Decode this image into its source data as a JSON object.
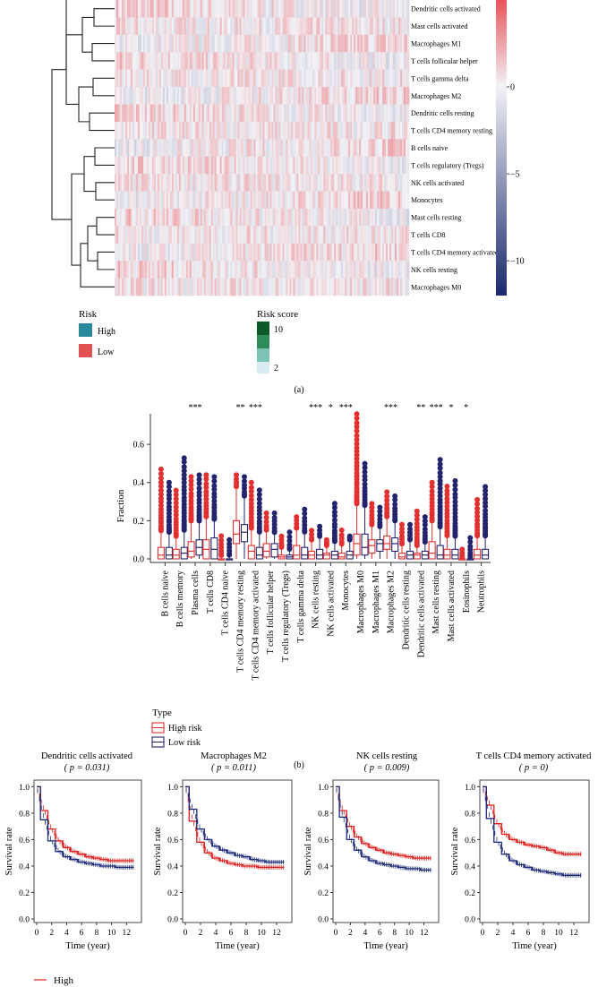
{
  "chart_data": [
    {
      "type": "heatmap",
      "panel_label": "(a)",
      "rows": [
        "Dendritic cells activated",
        "Mast cells activated",
        "Macrophages M1",
        "T cells follicular helper",
        "T cells gamma delta",
        "Macrophages M2",
        "Dendritic cells resting",
        "T cells CD4 memory resting",
        "B cells naive",
        "T cells regulatory (Tregs)",
        "NK cells activated",
        "Monocytes",
        "Mast cells resting",
        "T cells CD8",
        "T cells CD4 memory activated",
        "NK cells resting",
        "Macrophages M0"
      ],
      "colorbar": {
        "ticks": [
          "0",
          "−5",
          "−10"
        ],
        "tick_values": [
          0,
          -5,
          -10
        ],
        "range": [
          -12,
          5
        ],
        "low_color": "#1a2a6c",
        "mid_color": "#f2f2f6",
        "high_color": "#e8545a"
      },
      "annotation_legends": {
        "risk": {
          "title": "Risk",
          "items": [
            {
              "label": "High",
              "color": "#2a8a9c"
            },
            {
              "label": "Low",
              "color": "#e05252"
            }
          ]
        },
        "risk_score": {
          "title": "Risk score",
          "ticks": [
            "10",
            "2"
          ],
          "colors": [
            "#0c5a2a",
            "#2e8b5a",
            "#7cc3b4",
            "#d8ecf2"
          ]
        }
      }
    },
    {
      "type": "box",
      "panel_label": "(b)",
      "ylabel": "Fraction",
      "ylim": [
        0,
        0.76
      ],
      "yticks": [
        "0.0",
        "0.2",
        "0.4",
        "0.6"
      ],
      "ytick_values": [
        0,
        0.2,
        0.4,
        0.6
      ],
      "categories": [
        "B cells naive",
        "B cells memory",
        "Plasma cells",
        "T cells CD8",
        "T cells CD4 naive",
        "T cells CD4 memory resting",
        "T cells CD4 memory activated",
        "T cells follicular helper",
        "T cells regulatory (Tregs)",
        "T cells gamma delta",
        "NK cells resting",
        "NK cells activated",
        "Monocytes",
        "Macrophages M0",
        "Macrophages M1",
        "Macrophages M2",
        "Dendritic cells resting",
        "Dendritic cells activated",
        "Mast cells resting",
        "Mast cells activated",
        "Eosinophils",
        "Neutrophils"
      ],
      "significance": [
        "",
        "",
        "***",
        "",
        "",
        "**",
        "***",
        "",
        "",
        "",
        "***",
        "*",
        "***",
        "",
        "",
        "***",
        "",
        "**",
        "***",
        "*",
        "*",
        ""
      ],
      "legend": {
        "title": "Type",
        "items": [
          {
            "label": "High risk",
            "color": "#e23030"
          },
          {
            "label": "Low risk",
            "color": "#23236e"
          }
        ]
      },
      "series": [
        {
          "name": "High risk",
          "median": [
            0.02,
            0.02,
            0.04,
            0.05,
            0.0,
            0.13,
            0.04,
            0.04,
            0.01,
            0.02,
            0.02,
            0.02,
            0.01,
            0.08,
            0.07,
            0.08,
            0.01,
            0.02,
            0.03,
            0.02,
            0.0,
            0.02
          ],
          "q1": [
            0.0,
            0.0,
            0.01,
            0.0,
            0.0,
            0.08,
            0.0,
            0.01,
            0.0,
            0.0,
            0.0,
            0.0,
            0.0,
            0.02,
            0.03,
            0.05,
            0.0,
            0.0,
            0.0,
            0.0,
            0.0,
            0.0
          ],
          "q3": [
            0.06,
            0.05,
            0.09,
            0.1,
            0.0,
            0.2,
            0.07,
            0.08,
            0.02,
            0.07,
            0.04,
            0.03,
            0.03,
            0.13,
            0.1,
            0.12,
            0.03,
            0.03,
            0.09,
            0.05,
            0.0,
            0.05
          ],
          "whisker_hi": [
            0.15,
            0.12,
            0.2,
            0.22,
            0.02,
            0.38,
            0.16,
            0.15,
            0.06,
            0.16,
            0.1,
            0.07,
            0.08,
            0.29,
            0.18,
            0.22,
            0.08,
            0.07,
            0.2,
            0.12,
            0.01,
            0.12
          ],
          "outlier_max": [
            0.47,
            0.36,
            0.43,
            0.44,
            0.12,
            0.44,
            0.4,
            0.24,
            0.12,
            0.22,
            0.15,
            0.1,
            0.15,
            0.76,
            0.29,
            0.35,
            0.18,
            0.25,
            0.4,
            0.38,
            0.05,
            0.31
          ]
        },
        {
          "name": "Low risk",
          "median": [
            0.02,
            0.03,
            0.06,
            0.05,
            0.0,
            0.14,
            0.02,
            0.05,
            0.01,
            0.02,
            0.02,
            0.02,
            0.02,
            0.06,
            0.08,
            0.08,
            0.02,
            0.02,
            0.02,
            0.02,
            0.0,
            0.02
          ],
          "q1": [
            0.0,
            0.0,
            0.02,
            0.0,
            0.0,
            0.09,
            0.0,
            0.01,
            0.0,
            0.0,
            0.0,
            0.0,
            0.0,
            0.02,
            0.04,
            0.04,
            0.0,
            0.0,
            0.0,
            0.0,
            0.0,
            0.0
          ],
          "q3": [
            0.06,
            0.06,
            0.1,
            0.11,
            0.0,
            0.18,
            0.06,
            0.08,
            0.02,
            0.06,
            0.05,
            0.04,
            0.04,
            0.13,
            0.1,
            0.11,
            0.04,
            0.04,
            0.07,
            0.05,
            0.0,
            0.05
          ],
          "whisker_hi": [
            0.14,
            0.15,
            0.2,
            0.21,
            0.02,
            0.33,
            0.14,
            0.14,
            0.05,
            0.14,
            0.12,
            0.09,
            0.1,
            0.28,
            0.17,
            0.2,
            0.1,
            0.09,
            0.17,
            0.12,
            0.01,
            0.12
          ],
          "outlier_max": [
            0.4,
            0.53,
            0.44,
            0.43,
            0.1,
            0.43,
            0.36,
            0.24,
            0.14,
            0.26,
            0.17,
            0.29,
            0.12,
            0.5,
            0.27,
            0.33,
            0.18,
            0.22,
            0.52,
            0.41,
            0.11,
            0.38
          ]
        }
      ]
    },
    {
      "type": "line",
      "title": "Dendritic cells activated",
      "pvalue_text": "( p = 0.031)",
      "xlabel": "Time (year)",
      "ylabel": "Survival rate",
      "xticks": [
        0,
        2,
        4,
        6,
        8,
        10,
        12
      ],
      "yticks": [
        "0.0",
        "0.2",
        "0.4",
        "0.6",
        "0.8",
        "1.0"
      ],
      "xlim": [
        0,
        14
      ],
      "ylim": [
        0,
        1.05
      ],
      "series": [
        {
          "name": "High",
          "color": "#e02020",
          "x": [
            0,
            1,
            2,
            3,
            4,
            5,
            6,
            7,
            8,
            9,
            10,
            11,
            12,
            13
          ],
          "y": [
            1.0,
            0.82,
            0.68,
            0.59,
            0.54,
            0.51,
            0.49,
            0.47,
            0.46,
            0.45,
            0.44,
            0.44,
            0.44,
            0.44
          ]
        },
        {
          "name": "Low",
          "color": "#1c2a7a",
          "x": [
            0,
            1,
            2,
            3,
            4,
            5,
            6,
            7,
            8,
            9,
            10,
            11,
            12,
            13
          ],
          "y": [
            1.0,
            0.75,
            0.59,
            0.51,
            0.47,
            0.45,
            0.43,
            0.42,
            0.41,
            0.4,
            0.4,
            0.39,
            0.39,
            0.39
          ]
        }
      ]
    },
    {
      "type": "line",
      "title": "Macrophages M2",
      "pvalue_text": "( p = 0.011)",
      "xlabel": "Time (year)",
      "ylabel": "Survival rate",
      "xticks": [
        0,
        2,
        4,
        6,
        8,
        10,
        12
      ],
      "yticks": [
        "0.0",
        "0.2",
        "0.4",
        "0.6",
        "0.8",
        "1.0"
      ],
      "xlim": [
        0,
        14
      ],
      "ylim": [
        0,
        1.05
      ],
      "series": [
        {
          "name": "High",
          "color": "#e02020",
          "x": [
            0,
            1,
            2,
            3,
            4,
            5,
            6,
            7,
            8,
            9,
            10,
            11,
            12,
            13
          ],
          "y": [
            1.0,
            0.74,
            0.58,
            0.5,
            0.46,
            0.44,
            0.42,
            0.41,
            0.4,
            0.4,
            0.39,
            0.39,
            0.39,
            0.39
          ]
        },
        {
          "name": "Low",
          "color": "#1c2a7a",
          "x": [
            0,
            1,
            2,
            3,
            4,
            5,
            6,
            7,
            8,
            9,
            10,
            11,
            12,
            13
          ],
          "y": [
            1.0,
            0.83,
            0.68,
            0.6,
            0.55,
            0.52,
            0.5,
            0.48,
            0.47,
            0.45,
            0.44,
            0.43,
            0.43,
            0.43
          ]
        }
      ]
    },
    {
      "type": "line",
      "title": "NK cells resting",
      "pvalue_text": "( p = 0.009)",
      "xlabel": "Time (year)",
      "ylabel": "Survival rate",
      "xticks": [
        0,
        2,
        4,
        6,
        8,
        10,
        12
      ],
      "yticks": [
        "0.0",
        "0.2",
        "0.4",
        "0.6",
        "0.8",
        "1.0"
      ],
      "xlim": [
        0,
        14
      ],
      "ylim": [
        0,
        1.05
      ],
      "series": [
        {
          "name": "High",
          "color": "#e02020",
          "x": [
            0,
            1,
            2,
            3,
            4,
            5,
            6,
            7,
            8,
            9,
            10,
            11,
            12,
            13
          ],
          "y": [
            1.0,
            0.82,
            0.7,
            0.62,
            0.57,
            0.54,
            0.52,
            0.5,
            0.49,
            0.48,
            0.47,
            0.46,
            0.46,
            0.46
          ]
        },
        {
          "name": "Low",
          "color": "#1c2a7a",
          "x": [
            0,
            1,
            2,
            3,
            4,
            5,
            6,
            7,
            8,
            9,
            10,
            11,
            12,
            13
          ],
          "y": [
            1.0,
            0.77,
            0.6,
            0.52,
            0.47,
            0.44,
            0.42,
            0.41,
            0.4,
            0.39,
            0.38,
            0.38,
            0.37,
            0.37
          ]
        }
      ]
    },
    {
      "type": "line",
      "title": "T cells CD4 memory activated",
      "pvalue_text": "( p = 0)",
      "xlabel": "Time (year)",
      "ylabel": "Survival rate",
      "xticks": [
        0,
        2,
        4,
        6,
        8,
        10,
        12
      ],
      "yticks": [
        "0.0",
        "0.2",
        "0.4",
        "0.6",
        "0.8",
        "1.0"
      ],
      "xlim": [
        0,
        14
      ],
      "ylim": [
        0,
        1.05
      ],
      "series": [
        {
          "name": "High",
          "color": "#e02020",
          "x": [
            0,
            1,
            2,
            3,
            4,
            5,
            6,
            7,
            8,
            9,
            10,
            11,
            12,
            13
          ],
          "y": [
            1.0,
            0.86,
            0.72,
            0.64,
            0.6,
            0.58,
            0.56,
            0.55,
            0.54,
            0.52,
            0.5,
            0.49,
            0.49,
            0.49
          ]
        },
        {
          "name": "Low",
          "color": "#1c2a7a",
          "x": [
            0,
            1,
            2,
            3,
            4,
            5,
            6,
            7,
            8,
            9,
            10,
            11,
            12,
            13
          ],
          "y": [
            1.0,
            0.76,
            0.58,
            0.49,
            0.44,
            0.41,
            0.39,
            0.37,
            0.36,
            0.35,
            0.34,
            0.33,
            0.33,
            0.33
          ]
        }
      ]
    }
  ],
  "survival_legend": {
    "items": [
      {
        "label": "High",
        "color": "#e02020"
      }
    ]
  }
}
